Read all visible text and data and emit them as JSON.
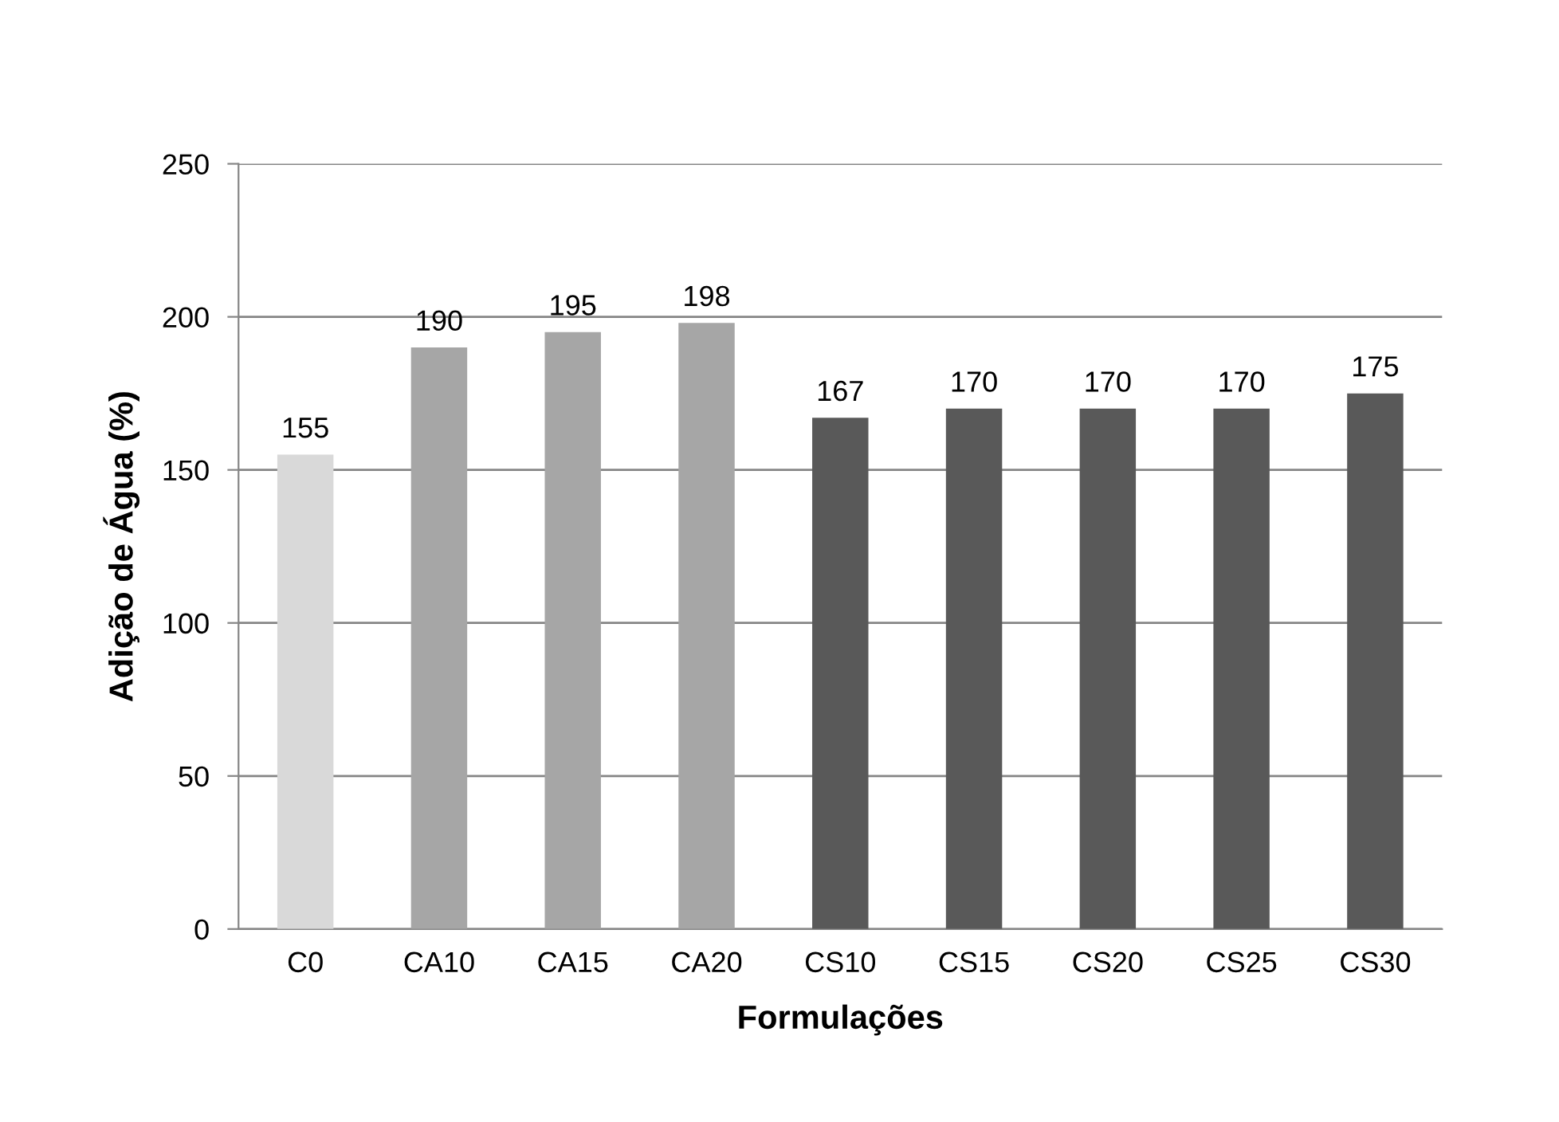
{
  "chart_data": {
    "type": "bar",
    "xlabel": "Formulações",
    "ylabel": "Adição de Água (%)",
    "categories": [
      "C0",
      "CA10",
      "CA15",
      "CA20",
      "CS10",
      "CS15",
      "CS20",
      "CS25",
      "CS30"
    ],
    "values": [
      155,
      190,
      195,
      198,
      167,
      170,
      170,
      170,
      175
    ],
    "colors": [
      "#d9d9d9",
      "#a6a6a6",
      "#a6a6a6",
      "#a6a6a6",
      "#595959",
      "#595959",
      "#595959",
      "#595959",
      "#595959"
    ],
    "ylim": [
      0,
      250
    ],
    "yticks": [
      0,
      50,
      100,
      150,
      200,
      250
    ],
    "grid": "y",
    "data_labels": true
  }
}
